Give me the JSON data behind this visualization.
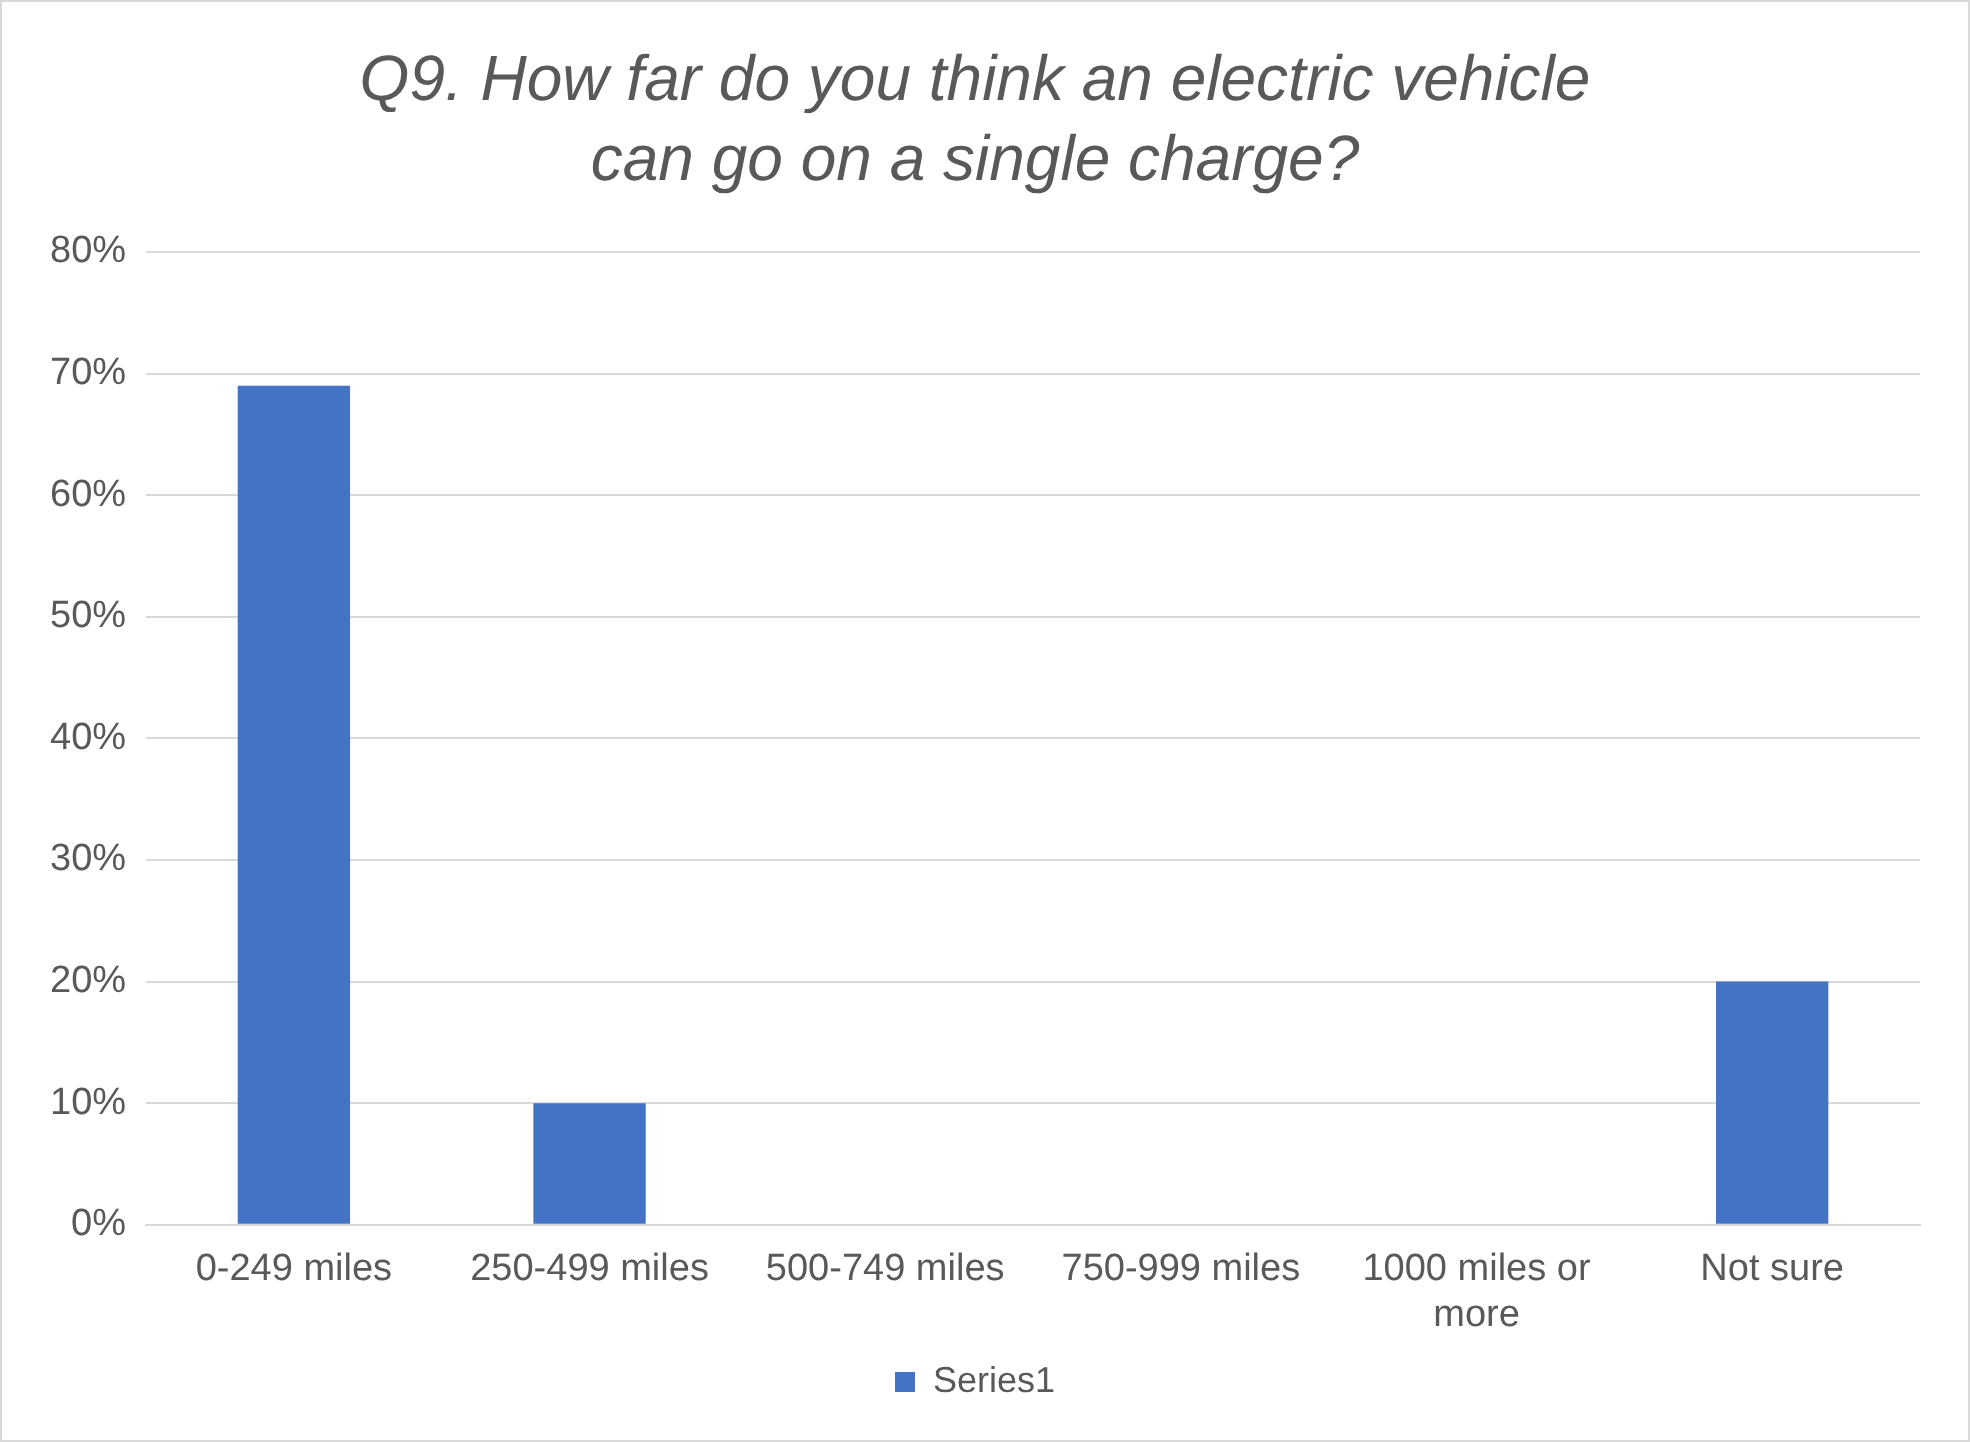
{
  "chart_data": {
    "type": "bar",
    "title": "Q9. How far do you think an electric vehicle can go on a single charge?",
    "categories": [
      "0-249 miles",
      "250-499 miles",
      "500-749 miles",
      "750-999 miles",
      "1000 miles or more",
      "Not sure"
    ],
    "series": [
      {
        "name": "Series1",
        "color": "#4472c4",
        "values": [
          69,
          10,
          0,
          0,
          0,
          20
        ]
      }
    ],
    "ylim": [
      0,
      80
    ],
    "yticks": [
      {
        "value": 0,
        "label": "0%"
      },
      {
        "value": 10,
        "label": "10%"
      },
      {
        "value": 20,
        "label": "20%"
      },
      {
        "value": 30,
        "label": "30%"
      },
      {
        "value": 40,
        "label": "40%"
      },
      {
        "value": 50,
        "label": "50%"
      },
      {
        "value": 60,
        "label": "60%"
      },
      {
        "value": 70,
        "label": "70%"
      },
      {
        "value": 80,
        "label": "80%"
      }
    ],
    "grid": "y",
    "legend": "bottom"
  }
}
